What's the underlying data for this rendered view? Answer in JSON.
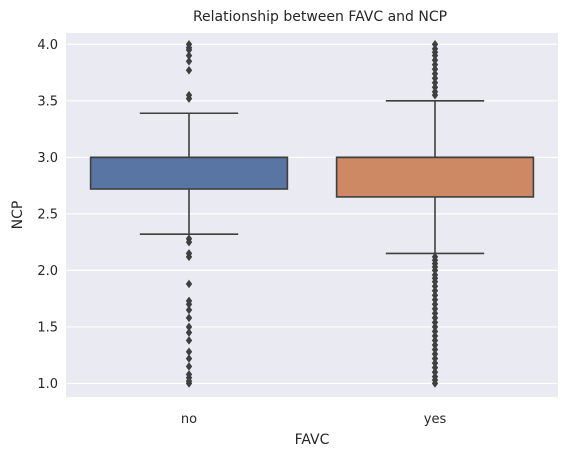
{
  "chart_data": {
    "type": "box",
    "title": "Relationship between FAVC and NCP",
    "xlabel": "FAVC",
    "ylabel": "NCP",
    "categories": [
      "no",
      "yes"
    ],
    "ylim": [
      0.88,
      4.1
    ],
    "yticks": [
      1.0,
      1.5,
      2.0,
      2.5,
      3.0,
      3.5,
      4.0
    ],
    "ytick_labels": [
      "1.0",
      "1.5",
      "2.0",
      "2.5",
      "3.0",
      "3.5",
      "4.0"
    ],
    "grid": true,
    "boxes": [
      {
        "category": "no",
        "color": "#5875a4",
        "q1": 2.72,
        "median": 3.0,
        "q3": 3.0,
        "whisker_low": 2.32,
        "whisker_high": 3.39,
        "outliers": [
          1.0,
          1.02,
          1.05,
          1.08,
          1.15,
          1.22,
          1.28,
          1.38,
          1.45,
          1.5,
          1.58,
          1.65,
          1.7,
          1.73,
          1.88,
          2.12,
          2.15,
          2.25,
          2.28,
          3.52,
          3.55,
          3.77,
          3.85,
          3.9,
          3.95,
          3.97,
          4.0
        ]
      },
      {
        "category": "yes",
        "color": "#cc8963",
        "q1": 2.65,
        "median": 3.0,
        "q3": 3.0,
        "whisker_low": 2.15,
        "whisker_high": 3.5,
        "outliers": [
          1.0,
          1.03,
          1.06,
          1.1,
          1.14,
          1.18,
          1.22,
          1.26,
          1.3,
          1.34,
          1.38,
          1.42,
          1.46,
          1.5,
          1.54,
          1.58,
          1.62,
          1.66,
          1.7,
          1.74,
          1.78,
          1.82,
          1.86,
          1.9,
          1.93,
          1.96,
          2.0,
          2.03,
          2.06,
          2.09,
          2.12,
          3.55,
          3.58,
          3.62,
          3.66,
          3.7,
          3.74,
          3.78,
          3.82,
          3.86,
          3.9,
          3.93,
          3.96,
          4.0
        ]
      }
    ]
  }
}
